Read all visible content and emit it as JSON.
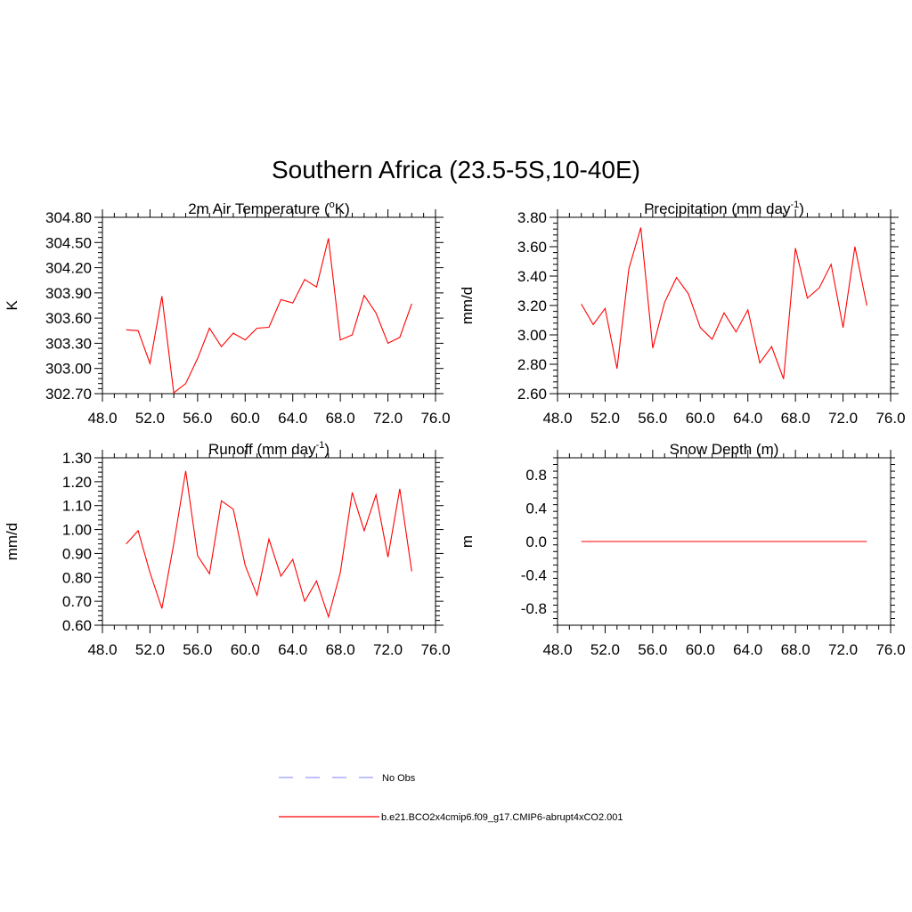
{
  "figure": {
    "title": "Southern Africa (23.5-5S,10-40E)"
  },
  "colors": {
    "series": "#ff0000",
    "obs": "#9999ff",
    "axis": "#000000"
  },
  "chart_data": [
    {
      "type": "line",
      "title_main": "2m Air Temperature (",
      "title_sup": "o",
      "title_end": "K)",
      "ylabel": "K",
      "xlim": [
        48,
        76
      ],
      "x_ticks": [
        "48.0",
        "52.0",
        "56.0",
        "60.0",
        "64.0",
        "68.0",
        "72.0",
        "76.0"
      ],
      "x_tick_values": [
        48,
        52,
        56,
        60,
        64,
        68,
        72,
        76
      ],
      "ylim": [
        302.7,
        304.8
      ],
      "y_ticks": [
        "302.70",
        "303.00",
        "303.30",
        "303.60",
        "303.90",
        "304.20",
        "304.50",
        "304.80"
      ],
      "y_tick_values": [
        302.7,
        303.0,
        303.3,
        303.6,
        303.9,
        304.2,
        304.5,
        304.8
      ],
      "series": [
        {
          "name": "b.e21.BCO2x4cmip6.f09_g17.CMIP6-abrupt4xCO2.001",
          "x": [
            50,
            51,
            52,
            53,
            54,
            55,
            56,
            57,
            58,
            59,
            60,
            61,
            62,
            63,
            64,
            65,
            66,
            67,
            68,
            69,
            70,
            71,
            72,
            73,
            74
          ],
          "values": [
            303.46,
            303.45,
            303.06,
            303.86,
            302.71,
            302.82,
            303.12,
            303.48,
            303.26,
            303.42,
            303.34,
            303.48,
            303.49,
            303.82,
            303.78,
            304.06,
            303.97,
            304.55,
            303.34,
            303.4,
            303.87,
            303.66,
            303.3,
            303.37,
            303.77
          ]
        }
      ]
    },
    {
      "type": "line",
      "title_main": "Precipitation (mm day",
      "title_sup": "-1",
      "title_end": ")",
      "ylabel": "mm/d",
      "xlim": [
        48,
        76
      ],
      "x_ticks": [
        "48.0",
        "52.0",
        "56.0",
        "60.0",
        "64.0",
        "68.0",
        "72.0",
        "76.0"
      ],
      "x_tick_values": [
        48,
        52,
        56,
        60,
        64,
        68,
        72,
        76
      ],
      "ylim": [
        2.6,
        3.8
      ],
      "y_ticks": [
        "2.60",
        "2.80",
        "3.00",
        "3.20",
        "3.40",
        "3.60",
        "3.80"
      ],
      "y_tick_values": [
        2.6,
        2.8,
        3.0,
        3.2,
        3.4,
        3.6,
        3.8
      ],
      "series": [
        {
          "name": "b.e21.BCO2x4cmip6.f09_g17.CMIP6-abrupt4xCO2.001",
          "x": [
            50,
            51,
            52,
            53,
            54,
            55,
            56,
            57,
            58,
            59,
            60,
            61,
            62,
            63,
            64,
            65,
            66,
            67,
            68,
            69,
            70,
            71,
            72,
            73,
            74
          ],
          "values": [
            3.21,
            3.07,
            3.18,
            2.77,
            3.45,
            3.73,
            2.91,
            3.22,
            3.39,
            3.28,
            3.05,
            2.97,
            3.15,
            3.02,
            3.17,
            2.81,
            2.92,
            2.7,
            3.59,
            3.25,
            3.32,
            3.48,
            3.05,
            3.6,
            3.2
          ]
        }
      ]
    },
    {
      "type": "line",
      "title_main": "Runoff (mm day",
      "title_sup": "-1",
      "title_end": ")",
      "ylabel": "mm/d",
      "xlim": [
        48,
        76
      ],
      "x_ticks": [
        "48.0",
        "52.0",
        "56.0",
        "60.0",
        "64.0",
        "68.0",
        "72.0",
        "76.0"
      ],
      "x_tick_values": [
        48,
        52,
        56,
        60,
        64,
        68,
        72,
        76
      ],
      "ylim": [
        0.6,
        1.3
      ],
      "y_ticks": [
        "0.60",
        "0.70",
        "0.80",
        "0.90",
        "1.00",
        "1.10",
        "1.20",
        "1.30"
      ],
      "y_tick_values": [
        0.6,
        0.7,
        0.8,
        0.9,
        1.0,
        1.1,
        1.2,
        1.3
      ],
      "series": [
        {
          "name": "b.e21.BCO2x4cmip6.f09_g17.CMIP6-abrupt4xCO2.001",
          "x": [
            50,
            51,
            52,
            53,
            54,
            55,
            56,
            57,
            58,
            59,
            60,
            61,
            62,
            63,
            64,
            65,
            66,
            67,
            68,
            69,
            70,
            71,
            72,
            73,
            74
          ],
          "values": [
            0.94,
            0.995,
            0.82,
            0.67,
            0.94,
            1.245,
            0.89,
            0.815,
            1.12,
            1.085,
            0.85,
            0.725,
            0.96,
            0.805,
            0.875,
            0.7,
            0.785,
            0.635,
            0.82,
            1.155,
            0.995,
            1.145,
            0.885,
            1.17,
            0.825
          ]
        }
      ]
    },
    {
      "type": "line",
      "title_main": "Snow Depth (m)",
      "title_sup": "",
      "title_end": "",
      "ylabel": "m",
      "xlim": [
        48,
        76
      ],
      "x_ticks": [
        "48.0",
        "52.0",
        "56.0",
        "60.0",
        "64.0",
        "68.0",
        "72.0",
        "76.0"
      ],
      "x_tick_values": [
        48,
        52,
        56,
        60,
        64,
        68,
        72,
        76
      ],
      "ylim": [
        -1.0,
        1.0
      ],
      "y_ticks": [
        "-0.8",
        "-0.4",
        "0.0",
        "0.4",
        "0.8"
      ],
      "y_tick_values": [
        -0.8,
        -0.4,
        0.0,
        0.4,
        0.8
      ],
      "series": [
        {
          "name": "b.e21.BCO2x4cmip6.f09_g17.CMIP6-abrupt4xCO2.001",
          "x": [
            50,
            51,
            52,
            53,
            54,
            55,
            56,
            57,
            58,
            59,
            60,
            61,
            62,
            63,
            64,
            65,
            66,
            67,
            68,
            69,
            70,
            71,
            72,
            73,
            74
          ],
          "values": [
            0,
            0,
            0,
            0,
            0,
            0,
            0,
            0,
            0,
            0,
            0,
            0,
            0,
            0,
            0,
            0,
            0,
            0,
            0,
            0,
            0,
            0,
            0,
            0,
            0
          ]
        }
      ]
    }
  ],
  "legend": {
    "obs_label": "No Obs",
    "model_label": "b.e21.BCO2x4cmip6.f09_g17.CMIP6-abrupt4xCO2.001"
  }
}
